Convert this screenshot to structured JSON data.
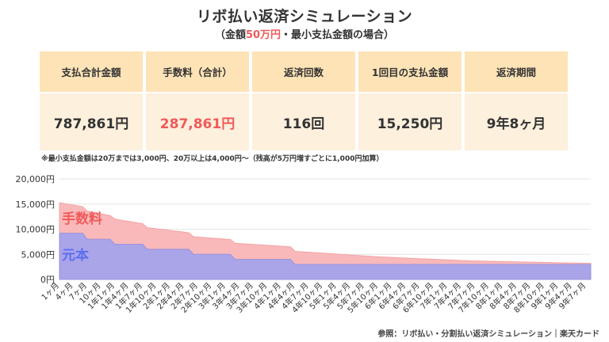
{
  "header": {
    "title": "リボ払い返済シミュレーション",
    "subtitle_pre": "（金額",
    "subtitle_amount": "50万円",
    "subtitle_post": "・最小支払金額の場合）"
  },
  "summary": {
    "headers": [
      "支払合計金額",
      "手数料（合計）",
      "返済回数",
      "1回目の支払金額",
      "返済期間"
    ],
    "values": [
      "787,861円",
      "287,861円",
      "116回",
      "15,250円",
      "9年8ヶ月"
    ]
  },
  "note": "※最小支払金額は20万までは3,000円、20万以上は4,000円〜（残高が5万円増すごとに1,000円加算）",
  "credit": "参照：リボ払い・分割払い返済シミュレーション｜楽天カード",
  "colors": {
    "fee_fill": "#f9b9ba",
    "fee_label": "#f05a5a",
    "principal_fill": "#aaa4e8",
    "principal_label": "#5a6ef0",
    "header_bg": "#fde3b6",
    "value_bg": "#fdf0dd"
  },
  "chart_data": {
    "type": "area",
    "stacked": true,
    "y_ticks": [
      "20,000円",
      "15,000円",
      "10,000円",
      "5,000円",
      "0円"
    ],
    "ylim": [
      0,
      20000
    ],
    "x_tick_labels": [
      "1ヶ月",
      "4ヶ月",
      "7ヶ月",
      "10ヶ月",
      "1年1ヶ月",
      "1年4ヶ月",
      "1年7ヶ月",
      "1年10ヶ月",
      "2年1ヶ月",
      "2年4ヶ月",
      "2年7ヶ月",
      "2年10ヶ月",
      "3年1ヶ月",
      "3年4ヶ月",
      "3年7ヶ月",
      "3年10ヶ月",
      "4年1ヶ月",
      "4年4ヶ月",
      "4年7ヶ月",
      "4年10ヶ月",
      "5年1ヶ月",
      "5年4ヶ月",
      "5年7ヶ月",
      "5年10ヶ月",
      "6年1ヶ月",
      "6年4ヶ月",
      "6年7ヶ月",
      "6年10ヶ月",
      "7年1ヶ月",
      "7年4ヶ月",
      "7年7ヶ月",
      "7年10ヶ月",
      "8年1ヶ月",
      "8年4ヶ月",
      "8年7ヶ月",
      "8年10ヶ月",
      "9年1ヶ月",
      "9年4ヶ月",
      "9年7ヶ月"
    ],
    "x_months": [
      1,
      4,
      7,
      10,
      13,
      16,
      19,
      22,
      25,
      28,
      31,
      34,
      37,
      40,
      43,
      46,
      49,
      52,
      55,
      58,
      61,
      64,
      67,
      70,
      73,
      76,
      79,
      82,
      85,
      88,
      91,
      94,
      97,
      100,
      103,
      106,
      109,
      112,
      115
    ],
    "x_range": [
      1,
      116
    ],
    "grid": "horizontal",
    "series": [
      {
        "name": "元本",
        "points": [
          [
            1,
            9200
          ],
          [
            6,
            9200
          ],
          [
            7,
            8000
          ],
          [
            12,
            8000
          ],
          [
            13,
            7000
          ],
          [
            19,
            7000
          ],
          [
            20,
            6000
          ],
          [
            29,
            6000
          ],
          [
            30,
            5000
          ],
          [
            38,
            5000
          ],
          [
            39,
            4000
          ],
          [
            51,
            4000
          ],
          [
            52,
            3000
          ],
          [
            116,
            3000
          ]
        ]
      },
      {
        "name": "手数料",
        "points": [
          [
            1,
            6050
          ],
          [
            6,
            5300
          ],
          [
            7,
            5600
          ],
          [
            12,
            4700
          ],
          [
            13,
            5000
          ],
          [
            19,
            4100
          ],
          [
            20,
            4300
          ],
          [
            29,
            3300
          ],
          [
            30,
            3500
          ],
          [
            38,
            2950
          ],
          [
            39,
            3200
          ],
          [
            51,
            2500
          ],
          [
            52,
            2600
          ],
          [
            70,
            1500
          ],
          [
            90,
            700
          ],
          [
            116,
            200
          ]
        ]
      }
    ]
  }
}
